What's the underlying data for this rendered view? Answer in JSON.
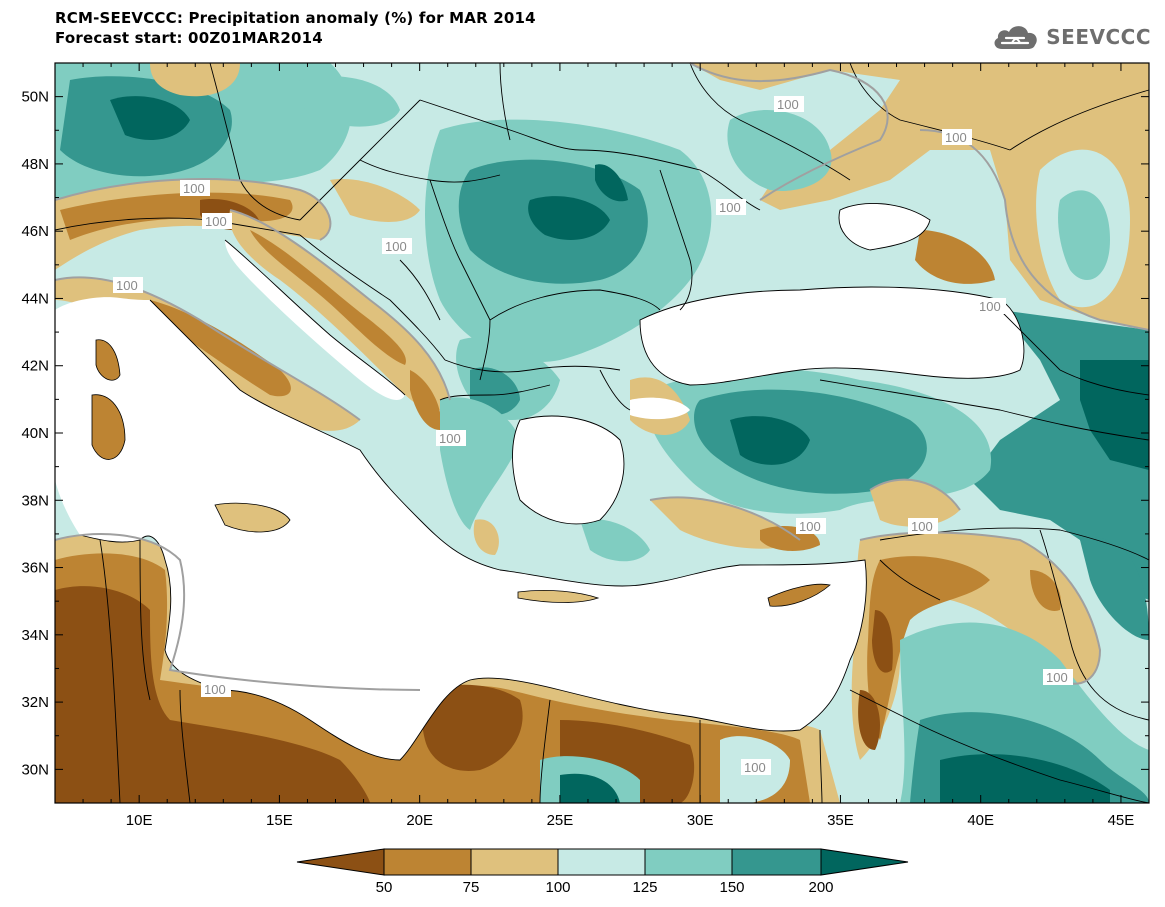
{
  "header": {
    "title_line1": "RCM-SEEVCCC: Precipitation anomaly (%) for MAR 2014",
    "title_line2": "Forecast start: 00Z01MAR2014"
  },
  "logo": {
    "text": "SEEVCCC",
    "icon": "cloud-icon"
  },
  "colors": {
    "dark_brown": "#8c5014",
    "brown": "#bd8433",
    "tan": "#dfc17d",
    "light_teal": "#c7eae5",
    "teal": "#80cdc1",
    "dark_teal": "#35978f",
    "darkest_teal": "#01665e",
    "land_bg": "#c7eae5",
    "sea": "#ffffff",
    "contour": "#a0a0a0"
  },
  "map": {
    "lon_range": [
      7,
      46
    ],
    "lat_range": [
      29,
      51
    ],
    "lon_ticks": [
      "10E",
      "15E",
      "20E",
      "25E",
      "30E",
      "35E",
      "40E",
      "45E"
    ],
    "lat_ticks": [
      "30N",
      "32N",
      "34N",
      "36N",
      "38N",
      "40N",
      "42N",
      "44N",
      "46N",
      "48N",
      "50N"
    ],
    "contour_labels": [
      "100",
      "100",
      "100",
      "100",
      "100",
      "100",
      "100",
      "100",
      "100",
      "100",
      "100",
      "100",
      "100",
      "100"
    ]
  },
  "colorbar": {
    "levels": [
      "50",
      "75",
      "100",
      "125",
      "150",
      "200"
    ]
  }
}
